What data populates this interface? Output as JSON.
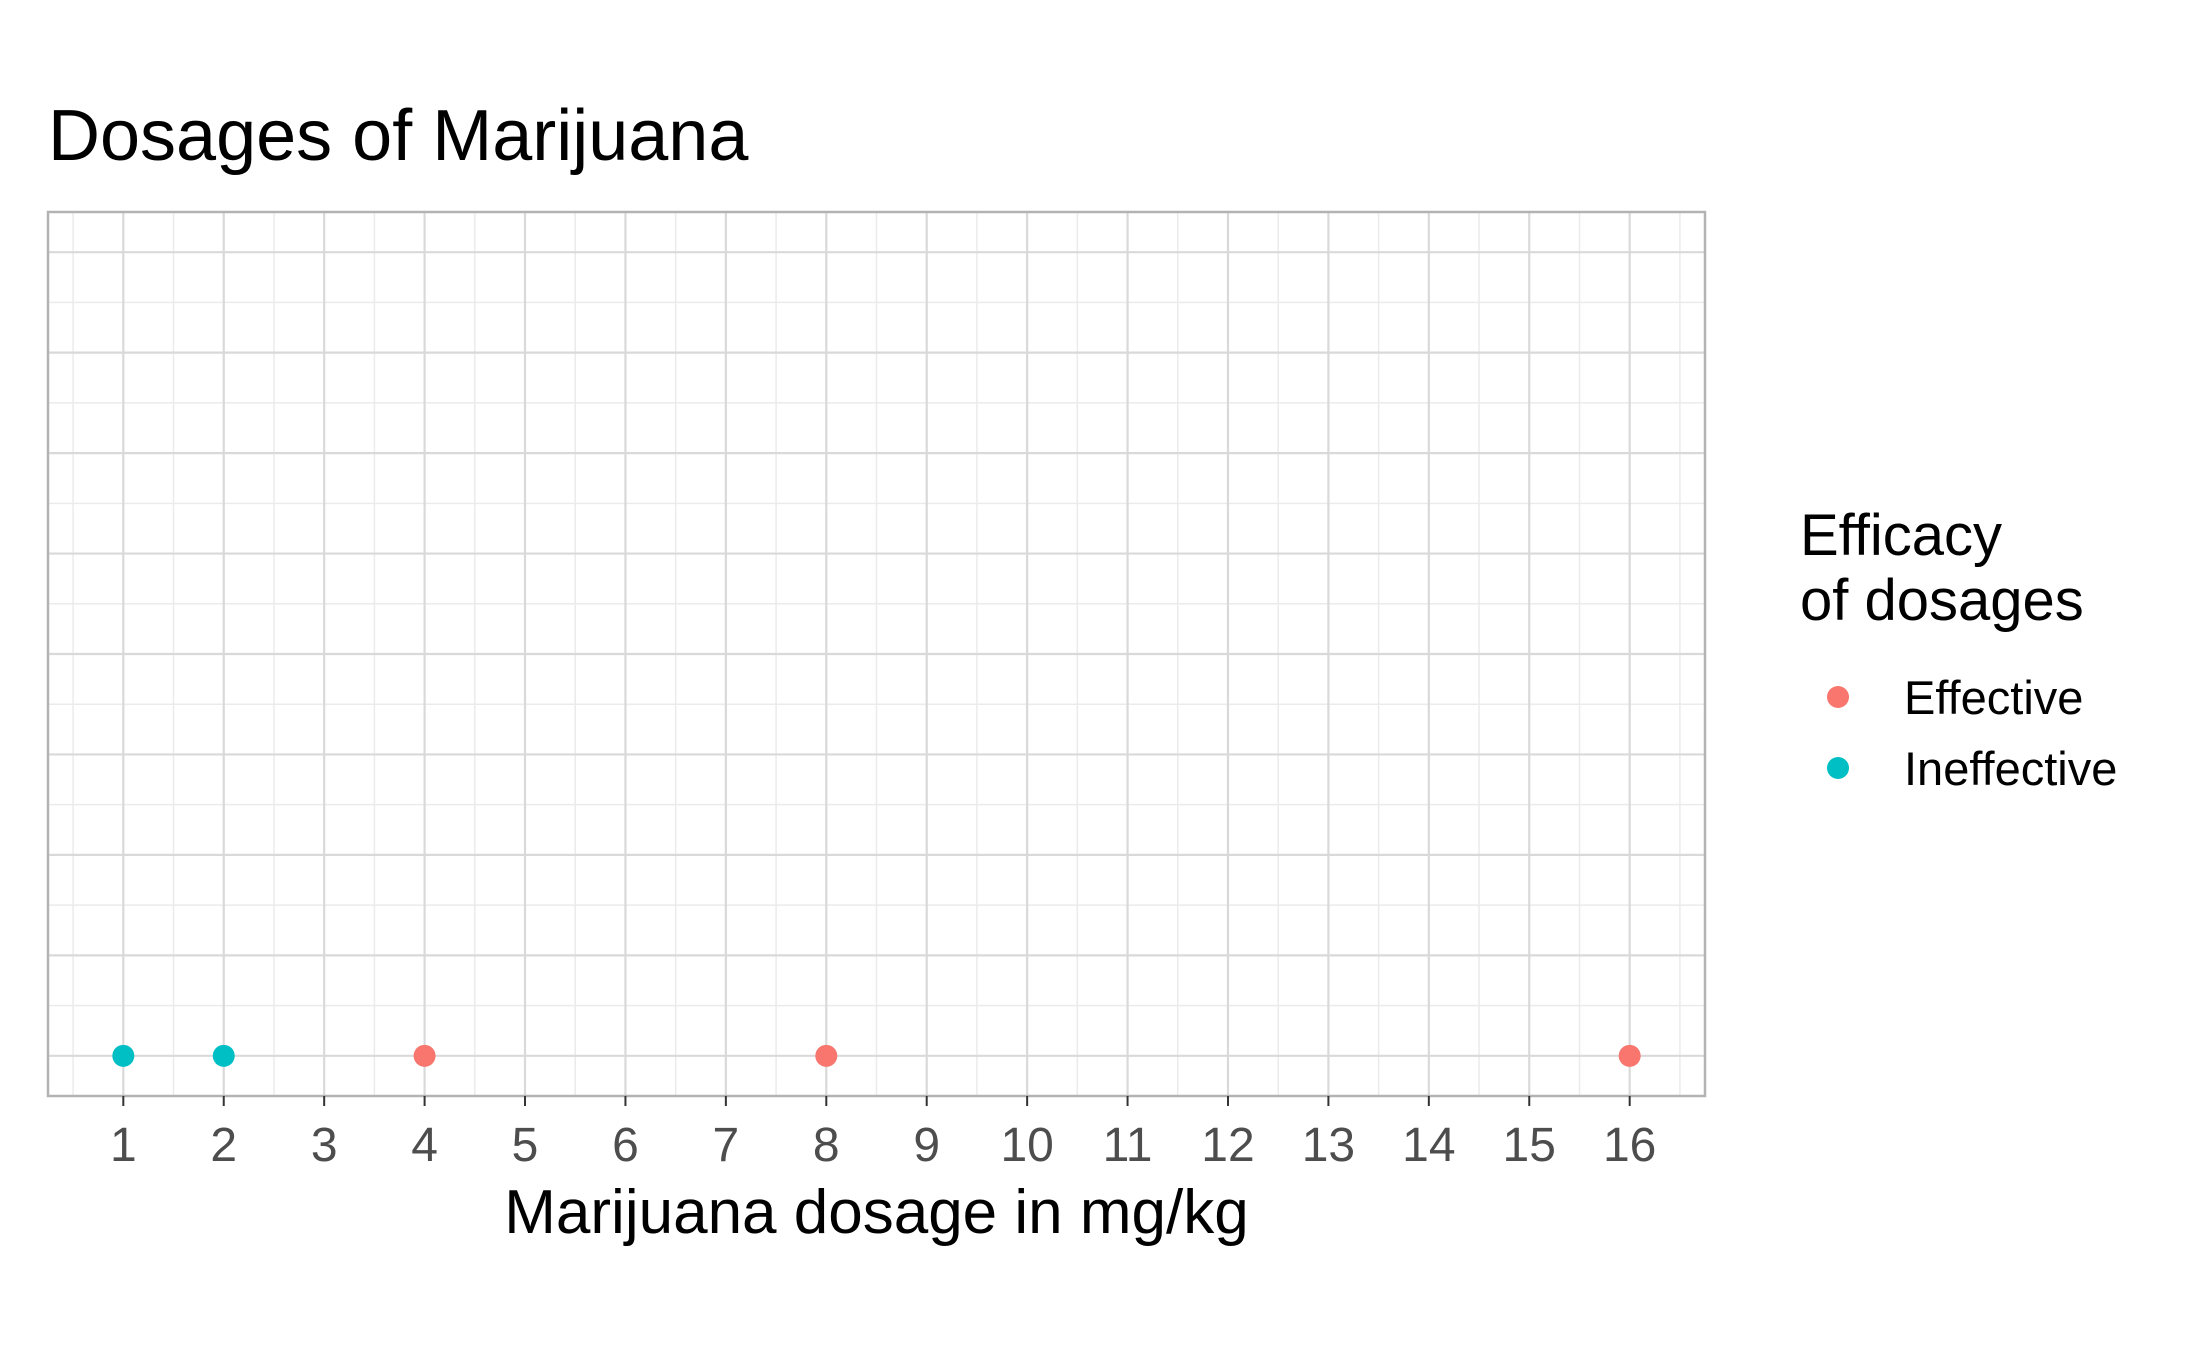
{
  "chart_data": {
    "type": "scatter",
    "title": "Dosages of Marijuana",
    "xlabel": "Marijuana dosage in mg/kg",
    "ylabel": "",
    "x_ticks": [
      "1",
      "2",
      "3",
      "4",
      "5",
      "6",
      "7",
      "8",
      "9",
      "10",
      "11",
      "12",
      "13",
      "14",
      "15",
      "16"
    ],
    "xlim": [
      0.25,
      16.75
    ],
    "y_axis_labels_shown": false,
    "grid": true,
    "legend": {
      "title_lines": [
        "Efficacy",
        "of dosages"
      ],
      "position": "right",
      "entries": [
        {
          "label": "Effective",
          "color": "#F8766D"
        },
        {
          "label": "Ineffective",
          "color": "#00BFC4"
        }
      ]
    },
    "series": [
      {
        "name": "Effective",
        "color": "#F8766D",
        "x": [
          4,
          8,
          16
        ],
        "y": [
          0,
          0,
          0
        ]
      },
      {
        "name": "Ineffective",
        "color": "#00BFC4",
        "x": [
          1,
          2
        ],
        "y": [
          0,
          0
        ]
      }
    ]
  }
}
